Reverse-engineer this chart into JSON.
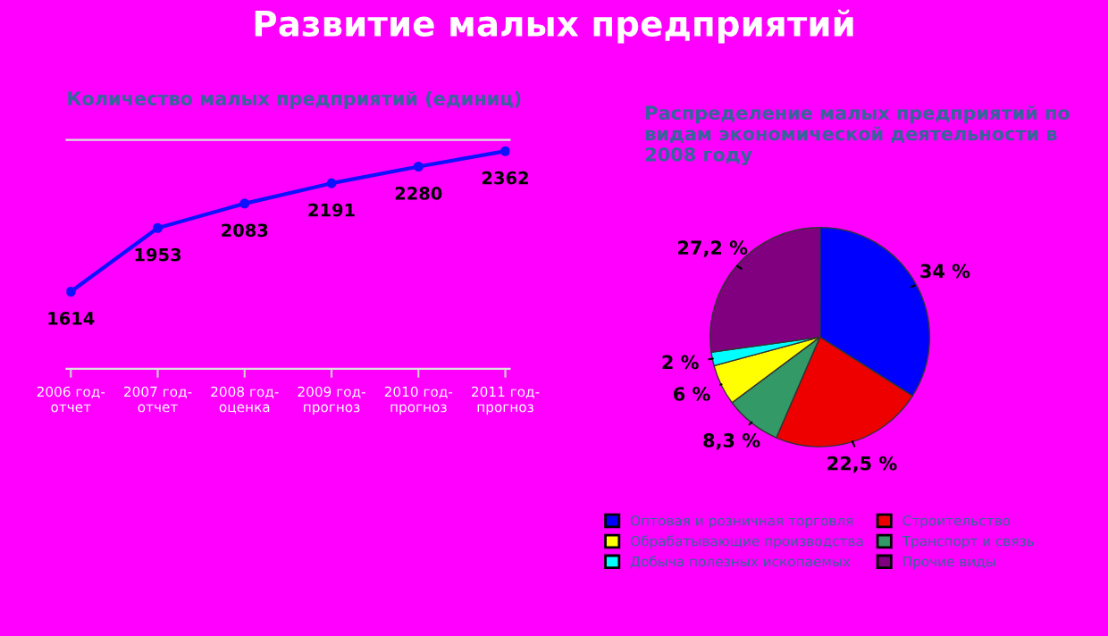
{
  "chart_data": [
    {
      "type": "line",
      "title": "Развитие малых предприятий",
      "subtitle": "Количество малых предприятий (единиц)",
      "categories": [
        "2006 год-\nотчет",
        "2007 год-\nотчет",
        "2008 год-\nоценка",
        "2009 год-\nпрогноз",
        "2010 год-\nпрогноз",
        "2011 год-\nпрогноз"
      ],
      "series": [
        {
          "color": "#1010ff",
          "values": [
            1614,
            1953,
            2083,
            2191,
            2280,
            2362
          ]
        }
      ],
      "data_labels": true,
      "marker": "circle",
      "line_style": "solid",
      "grid": false,
      "legend": false,
      "tick_labels": "x"
    },
    {
      "type": "pie",
      "title": "Распределение малых предприятий по видам экономической деятельности в 2008 году",
      "categories": [
        "Оптовая и розничная торговля",
        "Строительство",
        "Транспорт и связь",
        "Обрабатывающие производства",
        "Добыча полезных ископаемых",
        "Прочие виды"
      ],
      "values": [
        34,
        22.5,
        8.3,
        6,
        2,
        27.2
      ],
      "value_labels": [
        "34 %",
        "22,5 %",
        "8,3 %",
        "6 %",
        "2 %",
        "27,2 %"
      ],
      "colors": [
        "#0000ff",
        "#ee0000",
        "#339966",
        "#ffff00",
        "#00ffff",
        "#800080"
      ],
      "legend": "bottom"
    }
  ]
}
